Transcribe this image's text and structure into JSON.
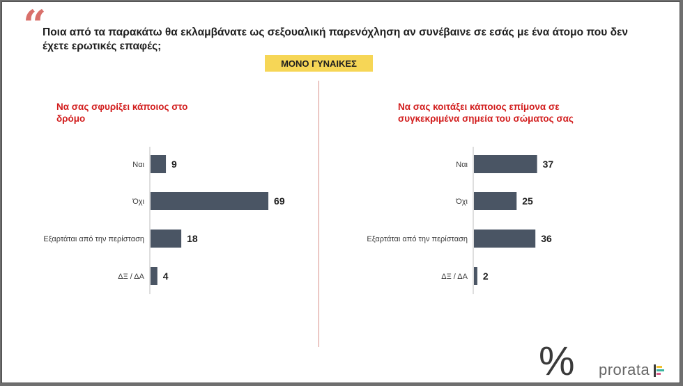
{
  "question": "Ποια από τα παρακάτω θα εκλαμβάνατε ως σεξουαλική παρενόχληση αν συνέβαινε σε εσάς με ένα άτομο που δεν έχετε ερωτικές επαφές;",
  "badge": "ΜΟΝΟ ΓΥΝΑΙΚΕΣ",
  "logo": {
    "symbol": "%",
    "text": "prorata"
  },
  "colors": {
    "bar": "#4a5564",
    "accent_red": "#d21e1e",
    "badge_bg": "#f6d656",
    "quote": "#d9706b"
  },
  "chart_data": [
    {
      "type": "bar",
      "orientation": "horizontal",
      "title": "Να σας σφυρίξει κάποιος στο δρόμο",
      "categories": [
        "Ναι",
        "Όχι",
        "Εξαρτάται από την περίσταση",
        "ΔΞ / ΔΑ"
      ],
      "values": [
        9,
        69,
        18,
        4
      ],
      "xlim": [
        0,
        100
      ],
      "grid": false
    },
    {
      "type": "bar",
      "orientation": "horizontal",
      "title": "Να σας κοιτάξει κάποιος επίμονα σε συγκεκριμένα σημεία του σώματος σας",
      "categories": [
        "Ναι",
        "Όχι",
        "Εξαρτάται από την περίσταση",
        "ΔΞ / ΔΑ"
      ],
      "values": [
        37,
        25,
        36,
        2
      ],
      "xlim": [
        0,
        100
      ],
      "grid": false
    }
  ]
}
